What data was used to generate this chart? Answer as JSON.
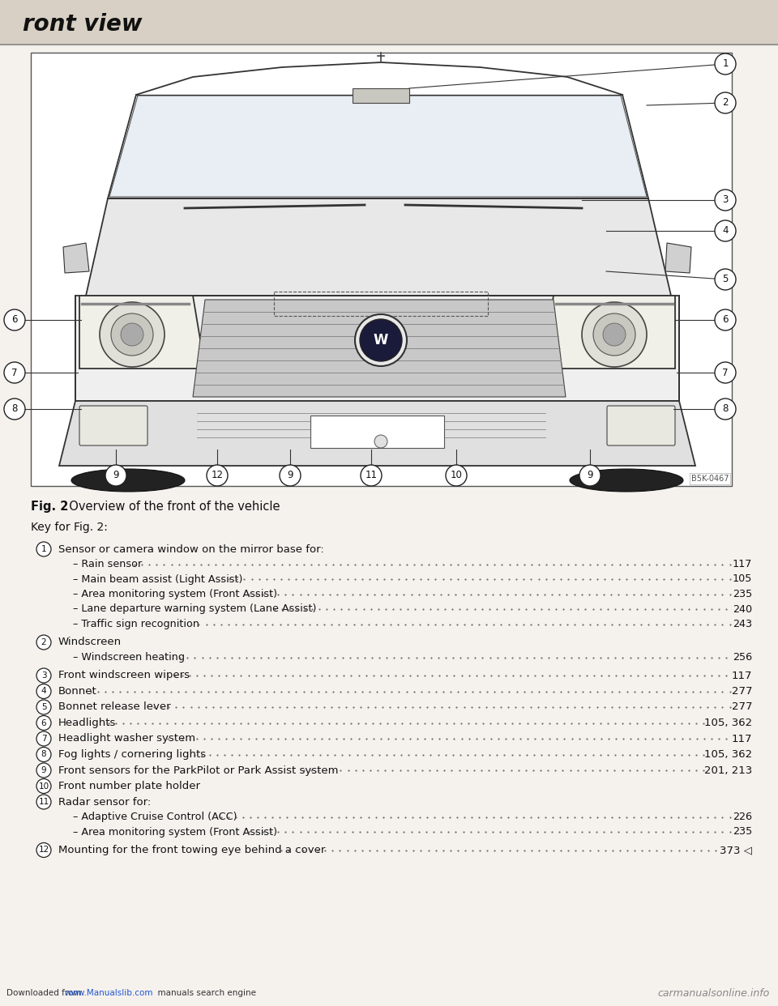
{
  "title": "ront view",
  "fig_caption_bold": "Fig. 2",
  "fig_caption_rest": "  Overview of the front of the vehicle",
  "key_header": "Key for Fig. 2:",
  "page_bg": "#f5f2ee",
  "diagram_bg": "#ffffff",
  "entries": [
    {
      "num": "1",
      "text": "Sensor or camera window on the mirror base for:",
      "page": "",
      "dots": false,
      "sub": [
        {
          "text": "– Rain sensor",
          "dots": true,
          "page": "117"
        },
        {
          "text": "– Main beam assist (Light Assist)",
          "dots": true,
          "page": "105"
        },
        {
          "text": "– Area monitoring system (Front Assist)",
          "dots": true,
          "page": "235"
        },
        {
          "text": "– Lane departure warning system (Lane Assist)",
          "dots": true,
          "page": "240"
        },
        {
          "text": "– Traffic sign recognition",
          "dots": true,
          "page": "243"
        }
      ]
    },
    {
      "num": "2",
      "text": "Windscreen",
      "page": "",
      "dots": false,
      "sub": [
        {
          "text": "– Windscreen heating",
          "dots": true,
          "page": "256"
        }
      ]
    },
    {
      "num": "3",
      "text": "Front windscreen wipers",
      "dots": true,
      "page": "117",
      "sub": []
    },
    {
      "num": "4",
      "text": "Bonnet",
      "dots": true,
      "page": "277",
      "sub": []
    },
    {
      "num": "5",
      "text": "Bonnet release lever",
      "dots": true,
      "page": "277",
      "sub": []
    },
    {
      "num": "6",
      "text": "Headlights",
      "dots": true,
      "page": "105, 362",
      "sub": []
    },
    {
      "num": "7",
      "text": "Headlight washer system",
      "dots": true,
      "page": "117",
      "sub": []
    },
    {
      "num": "8",
      "text": "Fog lights / cornering lights",
      "dots": true,
      "page": "105, 362",
      "sub": []
    },
    {
      "num": "9",
      "text": "Front sensors for the ParkPilot or Park Assist system",
      "dots": true,
      "page": "201, 213",
      "sub": []
    },
    {
      "num": "10",
      "text": "Front number plate holder",
      "page": "",
      "dots": false,
      "sub": []
    },
    {
      "num": "11",
      "text": "Radar sensor for:",
      "page": "",
      "dots": false,
      "sub": [
        {
          "text": "– Adaptive Cruise Control (ACC)",
          "dots": true,
          "page": "226"
        },
        {
          "text": "– Area monitoring system (Front Assist)",
          "dots": true,
          "page": "235"
        }
      ]
    },
    {
      "num": "12",
      "text": "Mounting for the front towing eye behind a cover",
      "dots": true,
      "page": "373 ◁",
      "sub": []
    }
  ],
  "footer_left1": "Downloaded from ",
  "footer_link": "www.Manualslib.com",
  "footer_left2": "  manuals search engine",
  "footer_right": "carmanualsonline.info",
  "image_label": "B5K-0467"
}
